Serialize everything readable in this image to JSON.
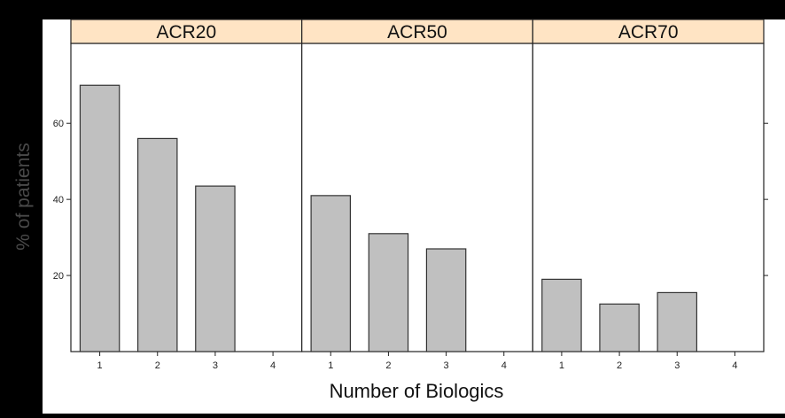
{
  "colors": {
    "background": "#000000",
    "plot_area": "#ffffff",
    "strip": "#ffe4c4",
    "bar_fill": "#c0c0c0",
    "bar_stroke": "#333333",
    "ylabel_color": "#4a4a4a"
  },
  "chart_data": {
    "type": "bar",
    "xlabel": "Number of Biologics",
    "ylabel": "% of patients",
    "categories": [
      "1",
      "2",
      "3",
      "4"
    ],
    "yticks": [
      20,
      40,
      60
    ],
    "ylim": [
      0,
      81
    ],
    "grid": false,
    "panels": [
      {
        "name": "ACR20",
        "values": [
          70,
          56,
          43.5,
          0
        ]
      },
      {
        "name": "ACR50",
        "values": [
          41,
          31,
          27,
          0
        ]
      },
      {
        "name": "ACR70",
        "values": [
          19,
          12.5,
          15.5,
          0
        ]
      }
    ]
  }
}
